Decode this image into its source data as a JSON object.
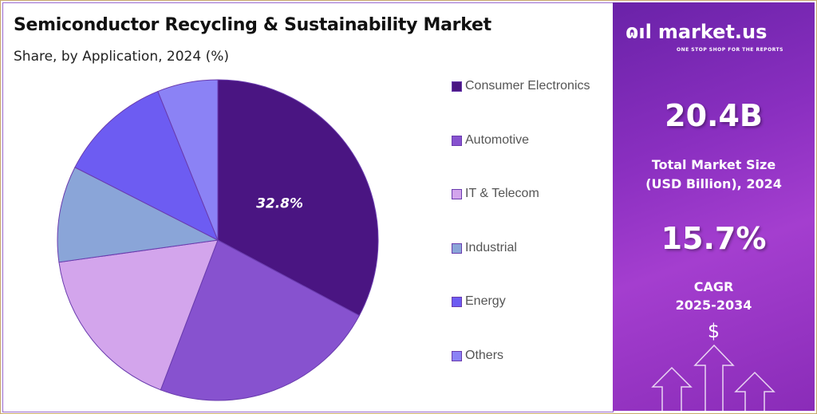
{
  "chart_data": {
    "type": "pie",
    "title": "Semiconductor Recycling & Sustainability Market",
    "subtitle": "Share, by Application, 2024 (%)",
    "categories": [
      "Consumer Electronics",
      "Automotive",
      "IT & Telecom",
      "Industrial",
      "Energy",
      "Others"
    ],
    "values": [
      32.8,
      23.0,
      17.0,
      9.7,
      11.4,
      6.1
    ],
    "colors": [
      "#4a1582",
      "#8752cf",
      "#d3a5ec",
      "#8aa5d8",
      "#6d5cf2",
      "#8b82f5"
    ],
    "data_labels": [
      "32.8%",
      "",
      "",
      "",
      "",
      ""
    ],
    "start_angle": "12 o'clock, clockwise",
    "legend": "right"
  },
  "side_panel": {
    "brand": "market.us",
    "tagline": "ONE STOP SHOP FOR THE REPORTS",
    "market_size": "20.4B",
    "market_size_label_1": "Total Market Size",
    "market_size_label_2": "(USD Billion), 2024",
    "cagr": "15.7%",
    "cagr_label_1": "CAGR",
    "cagr_label_2": "2025-2034",
    "dollar_icon": "$"
  }
}
